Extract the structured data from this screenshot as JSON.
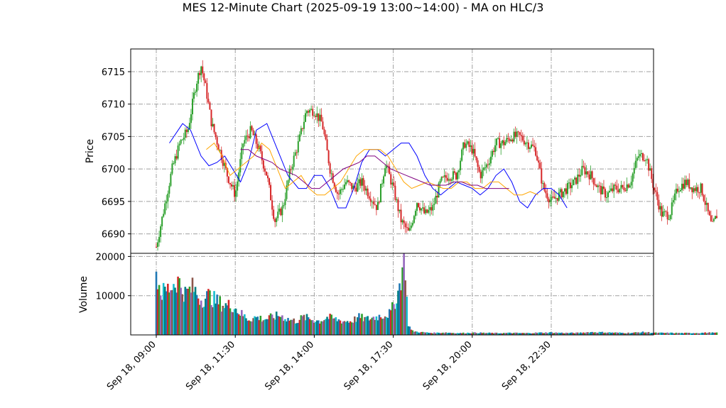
{
  "chart_data": {
    "type": "candlestick",
    "title": "MES 12-Minute Chart (2025-09-19 13:00~14:00) - MA on HLC/3",
    "colors": {
      "up": "#2ca02c",
      "down": "#d62728",
      "ma_fast": "#0000ff",
      "ma_mid": "#ffa500",
      "ma_slow": "#800080",
      "grid": "#a0a0a0",
      "volume_palette": [
        "#1f77b4",
        "#d62728",
        "#2ca02c",
        "#9467bd",
        "#8c564b",
        "#17becf",
        "#008080"
      ]
    },
    "price_panel": {
      "ylabel": "Price",
      "ylim": [
        6687,
        6718.5
      ],
      "yticks": [
        6690,
        6695,
        6700,
        6705,
        6710,
        6715
      ],
      "grid": true,
      "price_path": [
        {
          "t": 0,
          "p": 6688
        },
        {
          "t": 0.3,
          "p": 6694
        },
        {
          "t": 0.6,
          "p": 6700
        },
        {
          "t": 0.9,
          "p": 6704
        },
        {
          "t": 1.2,
          "p": 6706
        },
        {
          "t": 1.5,
          "p": 6713
        },
        {
          "t": 1.7,
          "p": 6716
        },
        {
          "t": 1.9,
          "p": 6712
        },
        {
          "t": 2.1,
          "p": 6707
        },
        {
          "t": 2.4,
          "p": 6703
        },
        {
          "t": 2.7,
          "p": 6699
        },
        {
          "t": 3.0,
          "p": 6696
        },
        {
          "t": 3.3,
          "p": 6704
        },
        {
          "t": 3.6,
          "p": 6706
        },
        {
          "t": 3.9,
          "p": 6703
        },
        {
          "t": 4.2,
          "p": 6699
        },
        {
          "t": 4.5,
          "p": 6692
        },
        {
          "t": 4.8,
          "p": 6694
        },
        {
          "t": 5.1,
          "p": 6700
        },
        {
          "t": 5.4,
          "p": 6704
        },
        {
          "t": 5.7,
          "p": 6709
        },
        {
          "t": 6.0,
          "p": 6709
        },
        {
          "t": 6.3,
          "p": 6707
        },
        {
          "t": 6.6,
          "p": 6700
        },
        {
          "t": 6.9,
          "p": 6696
        },
        {
          "t": 7.2,
          "p": 6698
        },
        {
          "t": 7.5,
          "p": 6697
        },
        {
          "t": 7.8,
          "p": 6698
        },
        {
          "t": 8.1,
          "p": 6696
        },
        {
          "t": 8.4,
          "p": 6694
        },
        {
          "t": 8.7,
          "p": 6701
        },
        {
          "t": 9.0,
          "p": 6697
        },
        {
          "t": 9.3,
          "p": 6692
        },
        {
          "t": 9.6,
          "p": 6690
        },
        {
          "t": 9.9,
          "p": 6695
        },
        {
          "t": 10.2,
          "p": 6693
        },
        {
          "t": 10.5,
          "p": 6694
        },
        {
          "t": 10.8,
          "p": 6698
        },
        {
          "t": 11.1,
          "p": 6699
        },
        {
          "t": 11.4,
          "p": 6699
        },
        {
          "t": 11.7,
          "p": 6704
        },
        {
          "t": 12.0,
          "p": 6703
        },
        {
          "t": 12.3,
          "p": 6699
        },
        {
          "t": 12.6,
          "p": 6701
        },
        {
          "t": 12.9,
          "p": 6704
        },
        {
          "t": 13.2,
          "p": 6704
        },
        {
          "t": 13.5,
          "p": 6705
        },
        {
          "t": 13.8,
          "p": 6705
        },
        {
          "t": 14.1,
          "p": 6704
        },
        {
          "t": 14.4,
          "p": 6703
        },
        {
          "t": 14.7,
          "p": 6697
        },
        {
          "t": 15.0,
          "p": 6695
        },
        {
          "t": 15.3,
          "p": 6696
        },
        {
          "t": 15.6,
          "p": 6697
        },
        {
          "t": 15.9,
          "p": 6698
        },
        {
          "t": 16.2,
          "p": 6700
        },
        {
          "t": 16.5,
          "p": 6699
        },
        {
          "t": 16.8,
          "p": 6697
        },
        {
          "t": 17.1,
          "p": 6696
        },
        {
          "t": 17.4,
          "p": 6697
        },
        {
          "t": 17.7,
          "p": 6697
        },
        {
          "t": 18.0,
          "p": 6698
        },
        {
          "t": 18.3,
          "p": 6702
        },
        {
          "t": 18.6,
          "p": 6702
        },
        {
          "t": 18.9,
          "p": 6697
        },
        {
          "t": 19.2,
          "p": 6693
        },
        {
          "t": 19.5,
          "p": 6693
        },
        {
          "t": 19.8,
          "p": 6697
        },
        {
          "t": 20.1,
          "p": 6698
        },
        {
          "t": 20.4,
          "p": 6697
        },
        {
          "t": 20.7,
          "p": 6697
        },
        {
          "t": 20.9,
          "p": 6694
        },
        {
          "t": 21.1,
          "p": 6691
        },
        {
          "t": 21.2,
          "p": 6692
        },
        {
          "t": 21.3,
          "p": 6693
        }
      ],
      "moving_averages": [
        {
          "color_key": "ma_fast",
          "points": [
            {
              "t": 0.5,
              "p": 6704
            },
            {
              "t": 1.0,
              "p": 6707
            },
            {
              "t": 1.3,
              "p": 6706
            },
            {
              "t": 1.7,
              "p": 6702
            },
            {
              "t": 2.0,
              "p": 6700.5
            },
            {
              "t": 2.3,
              "p": 6701
            },
            {
              "t": 2.6,
              "p": 6702
            },
            {
              "t": 2.9,
              "p": 6700
            },
            {
              "t": 3.2,
              "p": 6698
            },
            {
              "t": 3.5,
              "p": 6701
            },
            {
              "t": 3.8,
              "p": 6706
            },
            {
              "t": 4.2,
              "p": 6707
            },
            {
              "t": 4.6,
              "p": 6703
            },
            {
              "t": 5.0,
              "p": 6699
            },
            {
              "t": 5.4,
              "p": 6697
            },
            {
              "t": 5.7,
              "p": 6697
            },
            {
              "t": 6.0,
              "p": 6699
            },
            {
              "t": 6.3,
              "p": 6699
            },
            {
              "t": 6.6,
              "p": 6697
            },
            {
              "t": 6.9,
              "p": 6694
            },
            {
              "t": 7.2,
              "p": 6694
            },
            {
              "t": 7.5,
              "p": 6697
            },
            {
              "t": 7.8,
              "p": 6701
            },
            {
              "t": 8.1,
              "p": 6703
            },
            {
              "t": 8.4,
              "p": 6703
            },
            {
              "t": 8.7,
              "p": 6702
            },
            {
              "t": 9.0,
              "p": 6703
            },
            {
              "t": 9.3,
              "p": 6704
            },
            {
              "t": 9.6,
              "p": 6704
            },
            {
              "t": 9.9,
              "p": 6702
            },
            {
              "t": 10.2,
              "p": 6699
            },
            {
              "t": 10.5,
              "p": 6697
            },
            {
              "t": 10.8,
              "p": 6696
            },
            {
              "t": 11.1,
              "p": 6697
            },
            {
              "t": 11.4,
              "p": 6698
            },
            {
              "t": 11.7,
              "p": 6697.5
            },
            {
              "t": 12.0,
              "p": 6697
            },
            {
              "t": 12.3,
              "p": 6696
            },
            {
              "t": 12.6,
              "p": 6697
            },
            {
              "t": 12.9,
              "p": 6699
            },
            {
              "t": 13.2,
              "p": 6700
            },
            {
              "t": 13.5,
              "p": 6698
            },
            {
              "t": 13.8,
              "p": 6695
            },
            {
              "t": 14.1,
              "p": 6694
            },
            {
              "t": 14.4,
              "p": 6696
            },
            {
              "t": 14.7,
              "p": 6697
            },
            {
              "t": 15.0,
              "p": 6697
            },
            {
              "t": 15.3,
              "p": 6696
            },
            {
              "t": 15.6,
              "p": 6694
            }
          ]
        },
        {
          "color_key": "ma_mid",
          "points": [
            {
              "t": 1.9,
              "p": 6703
            },
            {
              "t": 2.2,
              "p": 6704
            },
            {
              "t": 2.5,
              "p": 6702
            },
            {
              "t": 2.8,
              "p": 6699
            },
            {
              "t": 3.1,
              "p": 6700
            },
            {
              "t": 3.4,
              "p": 6701
            },
            {
              "t": 3.7,
              "p": 6702
            },
            {
              "t": 4.0,
              "p": 6704
            },
            {
              "t": 4.3,
              "p": 6703
            },
            {
              "t": 4.6,
              "p": 6700
            },
            {
              "t": 4.9,
              "p": 6697
            },
            {
              "t": 5.2,
              "p": 6698
            },
            {
              "t": 5.5,
              "p": 6699
            },
            {
              "t": 5.8,
              "p": 6697
            },
            {
              "t": 6.1,
              "p": 6696
            },
            {
              "t": 6.4,
              "p": 6696
            },
            {
              "t": 6.7,
              "p": 6697
            },
            {
              "t": 7.0,
              "p": 6698
            },
            {
              "t": 7.3,
              "p": 6700
            },
            {
              "t": 7.6,
              "p": 6702
            },
            {
              "t": 7.9,
              "p": 6703
            },
            {
              "t": 8.2,
              "p": 6703
            },
            {
              "t": 8.5,
              "p": 6703
            },
            {
              "t": 8.8,
              "p": 6702
            },
            {
              "t": 9.1,
              "p": 6700
            },
            {
              "t": 9.4,
              "p": 6698
            },
            {
              "t": 9.7,
              "p": 6697
            },
            {
              "t": 10.0,
              "p": 6697.5
            },
            {
              "t": 10.3,
              "p": 6698
            },
            {
              "t": 10.6,
              "p": 6697.5
            },
            {
              "t": 10.9,
              "p": 6697
            },
            {
              "t": 11.2,
              "p": 6697
            },
            {
              "t": 11.5,
              "p": 6698
            },
            {
              "t": 11.8,
              "p": 6698
            },
            {
              "t": 12.1,
              "p": 6697
            },
            {
              "t": 12.4,
              "p": 6697
            },
            {
              "t": 12.7,
              "p": 6698
            },
            {
              "t": 13.0,
              "p": 6698
            },
            {
              "t": 13.3,
              "p": 6697
            },
            {
              "t": 13.6,
              "p": 6696
            },
            {
              "t": 13.9,
              "p": 6696
            },
            {
              "t": 14.2,
              "p": 6696.5
            },
            {
              "t": 14.5,
              "p": 6696
            }
          ]
        },
        {
          "color_key": "ma_slow",
          "points": [
            {
              "t": 3.2,
              "p": 6703
            },
            {
              "t": 3.5,
              "p": 6703
            },
            {
              "t": 3.8,
              "p": 6702
            },
            {
              "t": 4.1,
              "p": 6701.5
            },
            {
              "t": 4.4,
              "p": 6701
            },
            {
              "t": 4.7,
              "p": 6700
            },
            {
              "t": 5.0,
              "p": 6699.5
            },
            {
              "t": 5.3,
              "p": 6699
            },
            {
              "t": 5.6,
              "p": 6698
            },
            {
              "t": 5.9,
              "p": 6697
            },
            {
              "t": 6.2,
              "p": 6697
            },
            {
              "t": 6.5,
              "p": 6698
            },
            {
              "t": 6.8,
              "p": 6699
            },
            {
              "t": 7.1,
              "p": 6700
            },
            {
              "t": 7.4,
              "p": 6700.5
            },
            {
              "t": 7.7,
              "p": 6701
            },
            {
              "t": 8.0,
              "p": 6702
            },
            {
              "t": 8.3,
              "p": 6702
            },
            {
              "t": 8.6,
              "p": 6701
            },
            {
              "t": 8.9,
              "p": 6700
            },
            {
              "t": 9.2,
              "p": 6699.5
            },
            {
              "t": 9.5,
              "p": 6699
            },
            {
              "t": 9.8,
              "p": 6698.5
            },
            {
              "t": 10.1,
              "p": 6698
            },
            {
              "t": 10.4,
              "p": 6697.5
            },
            {
              "t": 10.7,
              "p": 6697.5
            },
            {
              "t": 11.0,
              "p": 6697.5
            },
            {
              "t": 11.3,
              "p": 6698
            },
            {
              "t": 11.6,
              "p": 6698
            },
            {
              "t": 11.9,
              "p": 6697.5
            },
            {
              "t": 12.2,
              "p": 6697.5
            },
            {
              "t": 12.5,
              "p": 6697
            },
            {
              "t": 12.8,
              "p": 6697
            },
            {
              "t": 13.1,
              "p": 6697
            },
            {
              "t": 13.4,
              "p": 6697
            }
          ]
        }
      ]
    },
    "volume_panel": {
      "ylabel": "Volume",
      "ylim": [
        0,
        20800
      ],
      "yticks": [
        10000,
        20000
      ],
      "grid": true,
      "volume_profile": [
        {
          "t": 0,
          "v": 15500
        },
        {
          "t": 0.2,
          "v": 10500
        },
        {
          "t": 0.5,
          "v": 12000
        },
        {
          "t": 0.8,
          "v": 14000
        },
        {
          "t": 1.1,
          "v": 10500
        },
        {
          "t": 1.4,
          "v": 12000
        },
        {
          "t": 1.7,
          "v": 9000
        },
        {
          "t": 2.0,
          "v": 10000
        },
        {
          "t": 2.3,
          "v": 8500
        },
        {
          "t": 2.6,
          "v": 7500
        },
        {
          "t": 2.9,
          "v": 7500
        },
        {
          "t": 3.2,
          "v": 5500
        },
        {
          "t": 3.5,
          "v": 4000
        },
        {
          "t": 3.8,
          "v": 4500
        },
        {
          "t": 4.1,
          "v": 4000
        },
        {
          "t": 4.4,
          "v": 4500
        },
        {
          "t": 4.7,
          "v": 5000
        },
        {
          "t": 5.0,
          "v": 4000
        },
        {
          "t": 5.3,
          "v": 3500
        },
        {
          "t": 5.6,
          "v": 4500
        },
        {
          "t": 5.9,
          "v": 4000
        },
        {
          "t": 6.2,
          "v": 3500
        },
        {
          "t": 6.5,
          "v": 4500
        },
        {
          "t": 6.8,
          "v": 4000
        },
        {
          "t": 7.1,
          "v": 3500
        },
        {
          "t": 7.4,
          "v": 3500
        },
        {
          "t": 7.7,
          "v": 4500
        },
        {
          "t": 8.0,
          "v": 4000
        },
        {
          "t": 8.3,
          "v": 4500
        },
        {
          "t": 8.6,
          "v": 5000
        },
        {
          "t": 8.9,
          "v": 5500
        },
        {
          "t": 9.2,
          "v": 11000
        },
        {
          "t": 9.35,
          "v": 17000
        },
        {
          "t": 9.45,
          "v": 19500
        },
        {
          "t": 9.55,
          "v": 3000
        },
        {
          "t": 9.7,
          "v": 1000
        },
        {
          "t": 10.0,
          "v": 700
        },
        {
          "t": 10.5,
          "v": 500
        },
        {
          "t": 11.0,
          "v": 600
        },
        {
          "t": 11.5,
          "v": 450
        },
        {
          "t": 12.0,
          "v": 550
        },
        {
          "t": 12.5,
          "v": 500
        },
        {
          "t": 13.0,
          "v": 450
        },
        {
          "t": 13.5,
          "v": 500
        },
        {
          "t": 14.0,
          "v": 450
        },
        {
          "t": 14.5,
          "v": 550
        },
        {
          "t": 15.0,
          "v": 600
        },
        {
          "t": 15.5,
          "v": 500
        },
        {
          "t": 16.0,
          "v": 500
        },
        {
          "t": 16.5,
          "v": 700
        },
        {
          "t": 17.0,
          "v": 650
        },
        {
          "t": 17.5,
          "v": 550
        },
        {
          "t": 18.0,
          "v": 500
        },
        {
          "t": 18.5,
          "v": 700
        },
        {
          "t": 19.0,
          "v": 500
        },
        {
          "t": 19.5,
          "v": 500
        },
        {
          "t": 20.0,
          "v": 450
        },
        {
          "t": 20.5,
          "v": 500
        },
        {
          "t": 21.0,
          "v": 550
        },
        {
          "t": 21.3,
          "v": 500
        }
      ]
    },
    "x_axis": {
      "tick_labels": [
        "Sep 18, 09:00",
        "Sep 18, 11:30",
        "Sep 18, 14:00",
        "Sep 18, 17:30",
        "Sep 18, 20:00",
        "Sep 18, 22:30"
      ],
      "tick_label_rotation_deg": 45
    }
  }
}
